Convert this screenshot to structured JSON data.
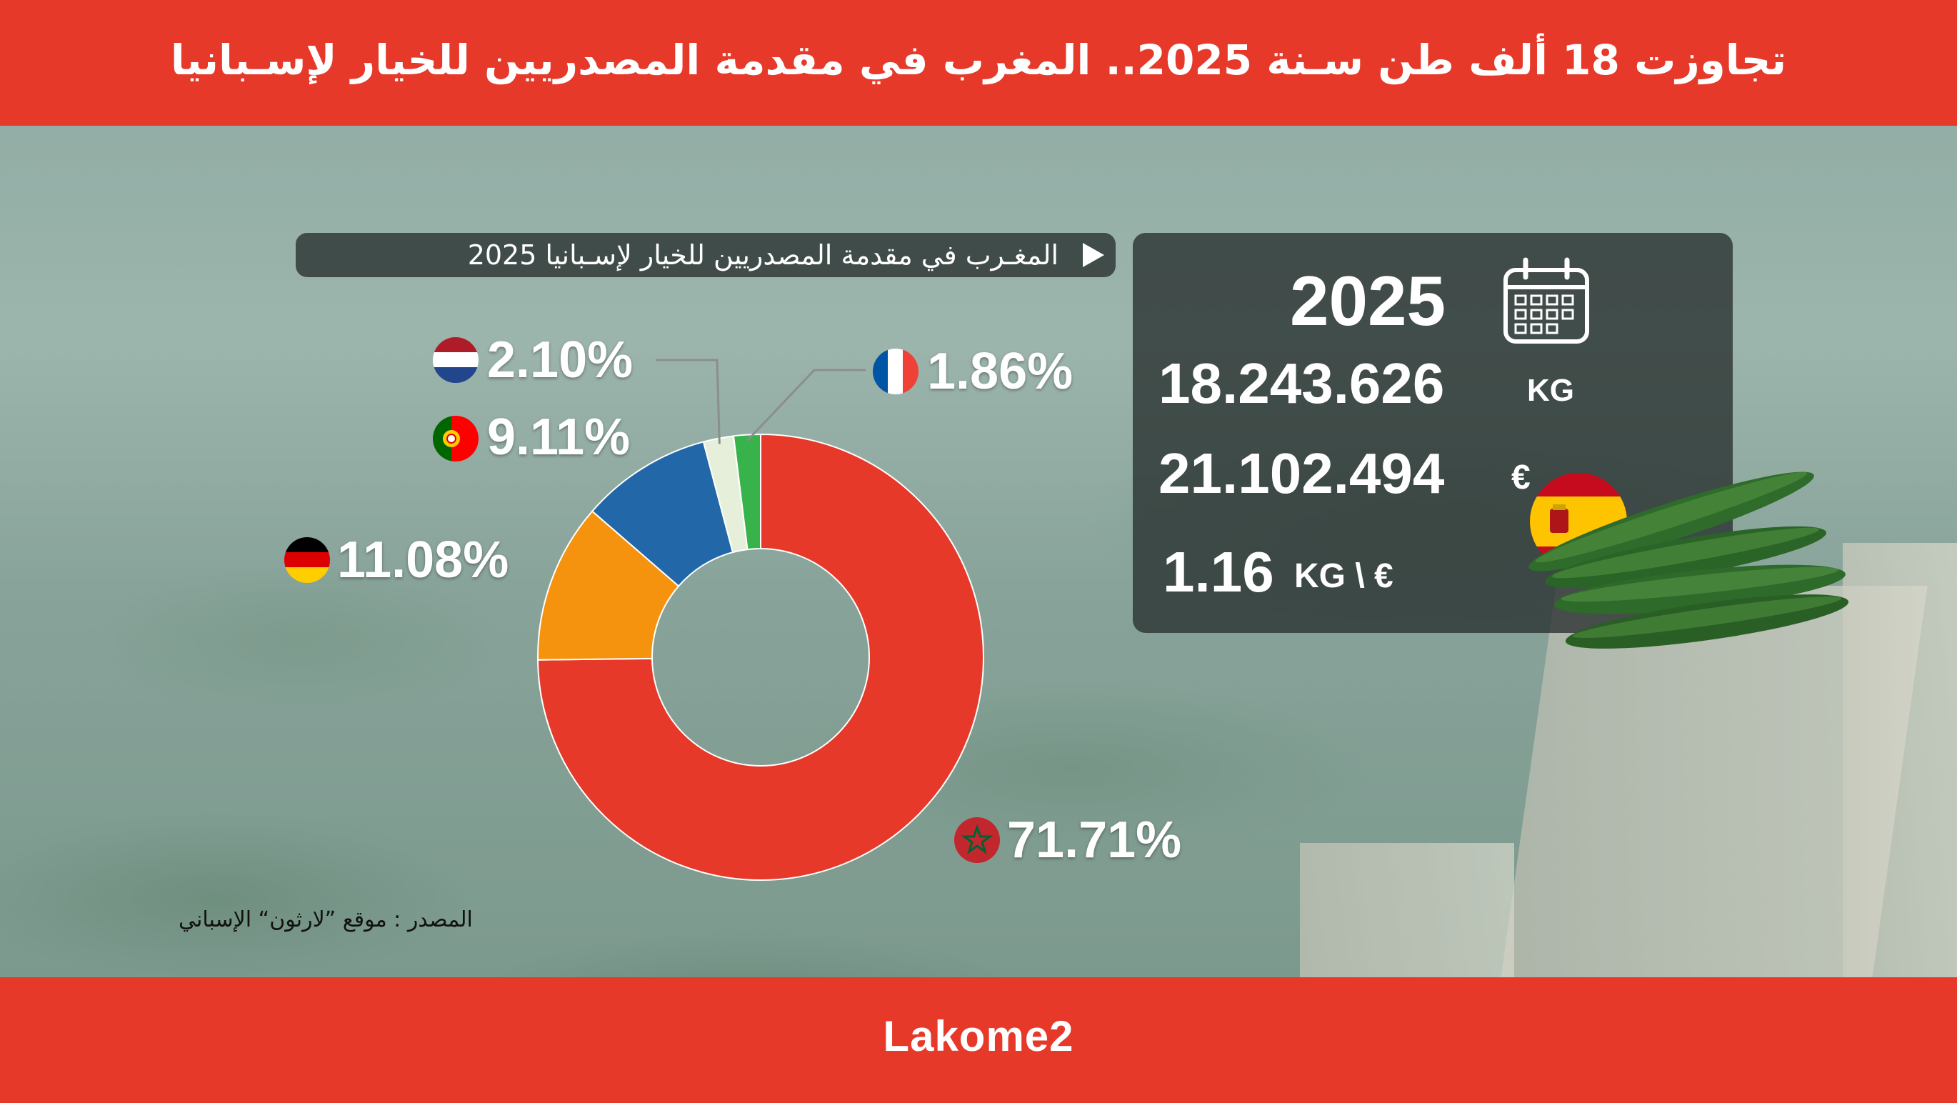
{
  "header": {
    "title": "تجاوزت 18  ألف طن سـنة 2025.. المغرب في مقدمة المصدريين للخيار لإسـبانيا"
  },
  "chart_subtitle": "المغـرب في مقدمة المصدريين للخيار لإسـبانيا 2025",
  "stats": {
    "year": "2025",
    "weight": "18.243.626",
    "weight_unit": "KG",
    "value": "21.102.494",
    "value_unit": "€",
    "price": "1.16",
    "price_unit": "KG \\ €"
  },
  "source": "المصدر : موقع ”لارثون“ الإسباني",
  "footer": {
    "brand": "Lakome2"
  },
  "colors": {
    "accent": "#e6392a",
    "morocco": "#e6392a",
    "germany": "#f5930f",
    "portugal": "#2268a8",
    "netherlands": "#e6efd9",
    "france": "#38b24a"
  },
  "icons": [
    "calendar-icon",
    "flag-morocco-icon",
    "flag-germany-icon",
    "flag-portugal-icon",
    "flag-netherlands-icon",
    "flag-france-icon",
    "flag-spain-icon"
  ],
  "chart_data": {
    "type": "pie",
    "donut": true,
    "title": "المغـرب في مقدمة المصدريين للخيار لإسـبانيا 2025",
    "slices": [
      {
        "key": "morocco",
        "value": 71.71,
        "label": "71.71%",
        "color": "#e6392a",
        "flag": "flag-morocco-icon"
      },
      {
        "key": "germany",
        "value": 11.08,
        "label": "11.08%",
        "color": "#f5930f",
        "flag": "flag-germany-icon"
      },
      {
        "key": "portugal",
        "value": 9.11,
        "label": "9.11%",
        "color": "#2268a8",
        "flag": "flag-portugal-icon"
      },
      {
        "key": "netherlands",
        "value": 2.1,
        "label": "2.10%",
        "color": "#e6efd9",
        "flag": "flag-netherlands-icon"
      },
      {
        "key": "france",
        "value": 1.86,
        "label": "1.86%",
        "color": "#38b24a",
        "flag": "flag-france-icon"
      }
    ]
  }
}
